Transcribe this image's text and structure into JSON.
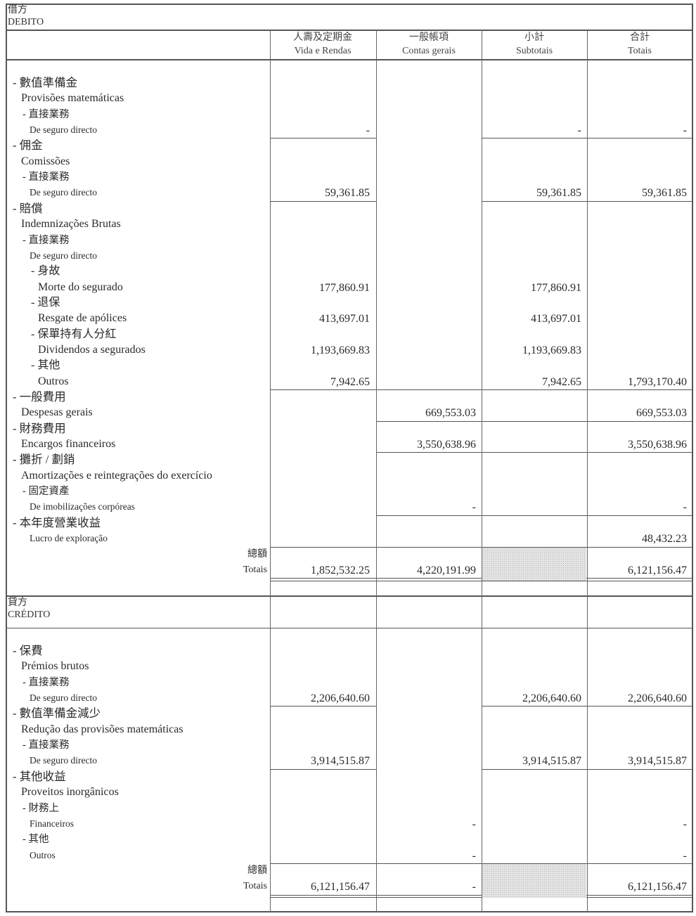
{
  "columns": [
    {
      "zh": "人壽及定期金",
      "pt": "Vida e Rendas"
    },
    {
      "zh": "一般帳項",
      "pt": "Contas gerais"
    },
    {
      "zh": "小計",
      "pt": "Subtotais"
    },
    {
      "zh": "合計",
      "pt": "Totais"
    }
  ],
  "sections": [
    {
      "title_zh": "借方",
      "title_pt": "DEBITO",
      "groups": [
        {
          "lines": [
            {
              "text": "- 數值準備金",
              "level": "l0"
            },
            {
              "text": "Provisões matemáticas",
              "level": "l0pt"
            },
            {
              "text": "- 直接業務",
              "level": "l1"
            },
            {
              "text": "De seguro directo",
              "level": "l1pt",
              "values": [
                "-",
                null,
                "-",
                "-"
              ]
            }
          ]
        },
        {
          "lines": [
            {
              "text": "- 佣金",
              "level": "l0"
            },
            {
              "text": "Comissões",
              "level": "l0pt"
            },
            {
              "text": "- 直接業務",
              "level": "l1"
            },
            {
              "text": "De seguro directo",
              "level": "l1pt",
              "values": [
                "59,361.85",
                null,
                "59,361.85",
                "59,361.85"
              ]
            }
          ]
        },
        {
          "lines": [
            {
              "text": "- 賠償",
              "level": "l0"
            },
            {
              "text": "Indemnizações Brutas",
              "level": "l0pt"
            },
            {
              "text": "- 直接業務",
              "level": "l1"
            },
            {
              "text": "De seguro directo",
              "level": "l1pt"
            },
            {
              "text": "- 身故",
              "level": "l2"
            },
            {
              "text": "Morte do segurado",
              "level": "l2pt",
              "values": [
                "177,860.91",
                null,
                "177,860.91",
                null
              ]
            },
            {
              "text": "- 退保",
              "level": "l2"
            },
            {
              "text": "Resgate de apólices",
              "level": "l2pt",
              "values": [
                "413,697.01",
                null,
                "413,697.01",
                null
              ]
            },
            {
              "text": "- 保單持有人分紅",
              "level": "l2"
            },
            {
              "text": "Dividendos a segurados",
              "level": "l2pt",
              "values": [
                "1,193,669.83",
                null,
                "1,193,669.83",
                null
              ]
            },
            {
              "text": "- 其他",
              "level": "l2"
            },
            {
              "text": "Outros",
              "level": "l2pt",
              "values": [
                "7,942.65",
                null,
                "7,942.65",
                "1,793,170.40"
              ]
            }
          ]
        },
        {
          "lines": [
            {
              "text": "- 一般費用",
              "level": "l0"
            },
            {
              "text": "Despesas gerais",
              "level": "l0pt",
              "values": [
                null,
                "669,553.03",
                null,
                "669,553.03"
              ]
            }
          ]
        },
        {
          "lines": [
            {
              "text": "- 財務費用",
              "level": "l0"
            },
            {
              "text": "Encargos financeiros",
              "level": "l0pt",
              "values": [
                null,
                "3,550,638.96",
                null,
                "3,550,638.96"
              ]
            }
          ]
        },
        {
          "lines": [
            {
              "text": "- 攤折 / 劃銷",
              "level": "l0"
            },
            {
              "text": "Amortizações e reintegrações do exercício",
              "level": "l0pt"
            },
            {
              "text": "- 固定資產",
              "level": "l1"
            },
            {
              "text": "De imobilizações corpóreas",
              "level": "l1pt",
              "values": [
                null,
                "-",
                null,
                "-"
              ]
            }
          ]
        },
        {
          "lines": [
            {
              "text": "- 本年度營業收益",
              "level": "l0"
            },
            {
              "text": "Lucro de exploração",
              "level": "l1pt",
              "values": [
                null,
                null,
                null,
                "48,432.23"
              ]
            }
          ]
        }
      ],
      "totals": {
        "label_zh": "總額",
        "label_pt": "Totais",
        "values": [
          "1,852,532.25",
          "4,220,191.99",
          null,
          "6,121,156.47"
        ]
      }
    },
    {
      "title_zh": "貸方",
      "title_pt": "CRÉDITO",
      "groups": [
        {
          "lines": [
            {
              "text": "- 保費",
              "level": "l0"
            },
            {
              "text": "Prémios brutos",
              "level": "l0pt"
            },
            {
              "text": "- 直接業務",
              "level": "l1"
            },
            {
              "text": "De seguro directo",
              "level": "l1pt",
              "values": [
                "2,206,640.60",
                null,
                "2,206,640.60",
                "2,206,640.60"
              ]
            }
          ]
        },
        {
          "lines": [
            {
              "text": "- 數值準備金減少",
              "level": "l0"
            },
            {
              "text": "Redução das provisões matemáticas",
              "level": "l0pt"
            },
            {
              "text": "- 直接業務",
              "level": "l1"
            },
            {
              "text": "De seguro directo",
              "level": "l1pt",
              "values": [
                "3,914,515.87",
                null,
                "3,914,515.87",
                "3,914,515.87"
              ]
            }
          ]
        },
        {
          "lines": [
            {
              "text": "- 其他收益",
              "level": "l0"
            },
            {
              "text": "Proveitos inorgânicos",
              "level": "l0pt"
            },
            {
              "text": "- 財務上",
              "level": "l1"
            },
            {
              "text": "Financeiros",
              "level": "l1pt",
              "values": [
                null,
                "-",
                null,
                "-"
              ]
            },
            {
              "text": "- 其他",
              "level": "l1"
            },
            {
              "text": "Outros",
              "level": "l1pt",
              "values": [
                null,
                "-",
                null,
                "-"
              ]
            }
          ]
        }
      ],
      "totals": {
        "label_zh": "總額",
        "label_pt": "Totais",
        "values": [
          "6,121,156.47",
          "-",
          null,
          "6,121,156.47"
        ]
      }
    }
  ]
}
